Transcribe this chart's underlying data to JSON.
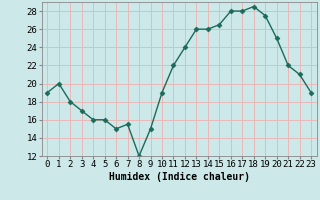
{
  "x": [
    0,
    1,
    2,
    3,
    4,
    5,
    6,
    7,
    8,
    9,
    10,
    11,
    12,
    13,
    14,
    15,
    16,
    17,
    18,
    19,
    20,
    21,
    22,
    23
  ],
  "y": [
    19,
    20,
    18,
    17,
    16,
    16,
    15,
    15.5,
    12,
    15,
    19,
    22,
    24,
    26,
    26,
    26.5,
    28,
    28,
    28.5,
    27.5,
    25,
    22,
    21,
    19
  ],
  "line_color": "#1a6b5a",
  "marker": "D",
  "marker_size": 2.5,
  "bg_color": "#cce8e8",
  "grid_color": "#e8b8b8",
  "xlabel": "Humidex (Indice chaleur)",
  "ylim_min": 12,
  "ylim_max": 29,
  "yticks": [
    12,
    14,
    16,
    18,
    20,
    22,
    24,
    26,
    28
  ],
  "xtick_labels": [
    "0",
    "1",
    "2",
    "3",
    "4",
    "5",
    "6",
    "7",
    "8",
    "9",
    "10",
    "11",
    "12",
    "13",
    "14",
    "15",
    "16",
    "17",
    "18",
    "19",
    "20",
    "21",
    "22",
    "23"
  ],
  "xlabel_fontsize": 7,
  "tick_fontsize": 6.5
}
